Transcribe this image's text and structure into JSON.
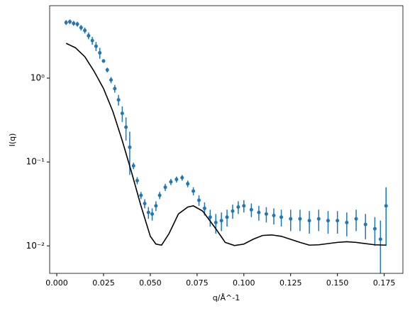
{
  "chart_data": {
    "type": "errorbar-log",
    "x_label": "q/Å^-1",
    "y_label": "I(q)",
    "xlim": [
      -0.0038,
      0.185
    ],
    "ylim": [
      0.0047,
      7.3
    ],
    "y_scale": "log",
    "xticks": [
      {
        "value": 0,
        "label": "0.000"
      },
      {
        "value": 0.025,
        "label": "0.025"
      },
      {
        "value": 0.05,
        "label": "0.050"
      },
      {
        "value": 0.075,
        "label": "0.075"
      },
      {
        "value": 0.1,
        "label": "0.100"
      },
      {
        "value": 0.125,
        "label": "0.125"
      },
      {
        "value": 0.15,
        "label": "0.150"
      },
      {
        "value": 0.175,
        "label": "0.175"
      }
    ],
    "yticks": [
      {
        "value": 0.01,
        "label": "10⁻²"
      },
      {
        "value": 0.1,
        "label": "10⁻¹"
      },
      {
        "value": 1,
        "label": "10⁰"
      }
    ],
    "series": [
      {
        "type": "errorbar",
        "color": "#1f77b4",
        "x": [
          0.005,
          0.007,
          0.009,
          0.011,
          0.013,
          0.015,
          0.017,
          0.019,
          0.021,
          0.023,
          0.025,
          0.027,
          0.029,
          0.031,
          0.033,
          0.035,
          0.037,
          0.039,
          0.041,
          0.043,
          0.045,
          0.047,
          0.049,
          0.051,
          0.053,
          0.055,
          0.058,
          0.061,
          0.064,
          0.067,
          0.07,
          0.073,
          0.076,
          0.079,
          0.082,
          0.085,
          0.088,
          0.091,
          0.094,
          0.097,
          0.1,
          0.104,
          0.108,
          0.112,
          0.116,
          0.12,
          0.125,
          0.13,
          0.135,
          0.14,
          0.145,
          0.15,
          0.155,
          0.16,
          0.165,
          0.17,
          0.173,
          0.176
        ],
        "values": [
          4.6,
          4.7,
          4.5,
          4.4,
          4.0,
          3.7,
          3.2,
          2.8,
          2.4,
          2.0,
          1.6,
          1.25,
          0.95,
          0.75,
          0.55,
          0.38,
          0.26,
          0.15,
          0.09,
          0.06,
          0.04,
          0.032,
          0.025,
          0.024,
          0.03,
          0.04,
          0.05,
          0.058,
          0.062,
          0.065,
          0.055,
          0.045,
          0.035,
          0.028,
          0.022,
          0.019,
          0.02,
          0.022,
          0.026,
          0.029,
          0.03,
          0.027,
          0.025,
          0.024,
          0.023,
          0.022,
          0.021,
          0.021,
          0.02,
          0.021,
          0.02,
          0.02,
          0.019,
          0.021,
          0.018,
          0.016,
          0.012,
          0.03
        ],
        "errors": [
          0.3,
          0.3,
          0.3,
          0.3,
          0.3,
          0.3,
          0.3,
          0.3,
          0.3,
          0.3,
          0.08,
          0.08,
          0.08,
          0.08,
          0.08,
          0.08,
          0.08,
          0.08,
          0.008,
          0.006,
          0.004,
          0.004,
          0.004,
          0.004,
          0.004,
          0.004,
          0.005,
          0.005,
          0.005,
          0.005,
          0.005,
          0.005,
          0.005,
          0.005,
          0.005,
          0.005,
          0.005,
          0.005,
          0.005,
          0.005,
          0.005,
          0.005,
          0.005,
          0.005,
          0.005,
          0.005,
          0.006,
          0.006,
          0.006,
          0.006,
          0.006,
          0.006,
          0.006,
          0.006,
          0.006,
          0.006,
          0.008,
          0.02
        ]
      },
      {
        "type": "line",
        "color": "#000000",
        "x": [
          0.005,
          0.01,
          0.015,
          0.02,
          0.025,
          0.03,
          0.035,
          0.04,
          0.045,
          0.05,
          0.053,
          0.056,
          0.06,
          0.065,
          0.07,
          0.073,
          0.078,
          0.085,
          0.09,
          0.095,
          0.1,
          0.105,
          0.11,
          0.115,
          0.12,
          0.13,
          0.135,
          0.14,
          0.15,
          0.155,
          0.16,
          0.17,
          0.176
        ],
        "values": [
          2.6,
          2.3,
          1.8,
          1.2,
          0.75,
          0.4,
          0.18,
          0.075,
          0.03,
          0.013,
          0.0105,
          0.0102,
          0.014,
          0.024,
          0.029,
          0.03,
          0.026,
          0.016,
          0.011,
          0.0101,
          0.0105,
          0.012,
          0.0133,
          0.0135,
          0.013,
          0.011,
          0.0102,
          0.0103,
          0.011,
          0.0112,
          0.011,
          0.0103,
          0.0102
        ]
      }
    ]
  }
}
